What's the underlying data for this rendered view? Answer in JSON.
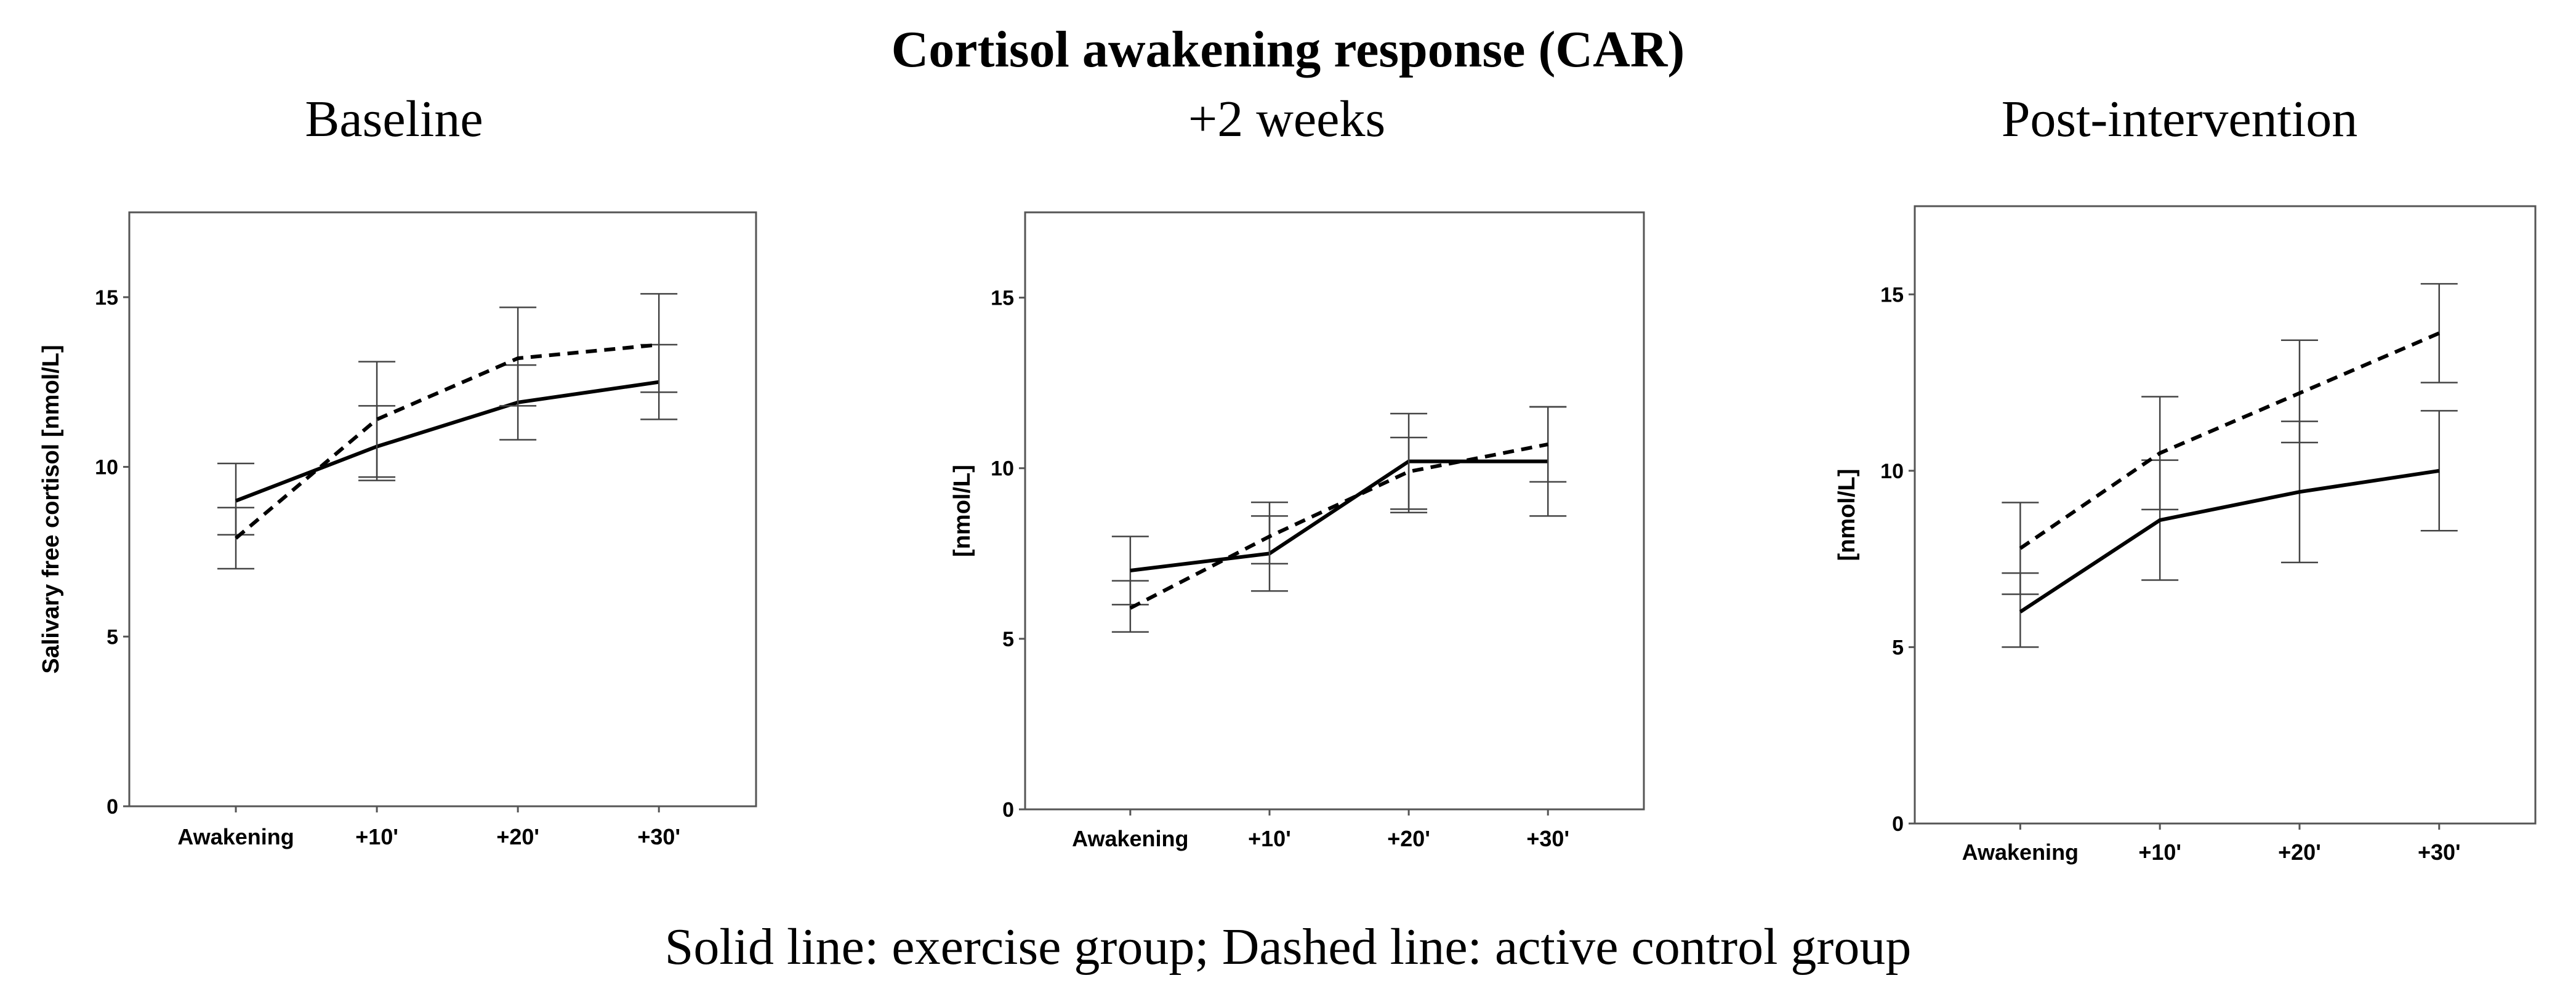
{
  "figure": {
    "title": "Cortisol awakening response (CAR)",
    "caption": "Solid line: exercise group; Dashed line: active control group"
  },
  "chart_data": [
    {
      "type": "line",
      "title": "Baseline",
      "ylabel": "Salivary free cortisol [nmol/L]",
      "xlabel": "",
      "categories": [
        "Awakening",
        "+10'",
        "+20'",
        "+30'"
      ],
      "ylim": [
        0,
        17.5
      ],
      "yticks": [
        "0",
        "5",
        "10",
        "15"
      ],
      "grid": false,
      "series": [
        {
          "style": "solid",
          "values": [
            9.0,
            10.6,
            11.9,
            12.5
          ],
          "err_low": [
            8.0,
            9.6,
            10.8,
            11.4
          ],
          "err_high": [
            10.1,
            11.8,
            13.0,
            13.6
          ]
        },
        {
          "style": "dashed",
          "values": [
            7.9,
            11.4,
            13.2,
            13.6
          ],
          "err_low": [
            7.0,
            9.7,
            11.8,
            12.2
          ],
          "err_high": [
            8.8,
            13.1,
            14.7,
            15.1
          ]
        }
      ]
    },
    {
      "type": "line",
      "title": "+2 weeks",
      "ylabel": "[nmol/L]",
      "xlabel": "",
      "categories": [
        "Awakening",
        "+10'",
        "+20'",
        "+30'"
      ],
      "ylim": [
        0,
        17.5
      ],
      "yticks": [
        "0",
        "5",
        "10",
        "15"
      ],
      "grid": false,
      "series": [
        {
          "style": "solid",
          "values": [
            7.0,
            7.5,
            10.2,
            10.2
          ],
          "err_low": [
            6.0,
            6.4,
            8.8,
            8.6
          ],
          "err_high": [
            8.0,
            8.6,
            11.6,
            11.8
          ]
        },
        {
          "style": "dashed",
          "values": [
            5.9,
            8.0,
            9.9,
            10.7
          ],
          "err_low": [
            5.2,
            7.2,
            8.7,
            9.6
          ],
          "err_high": [
            6.7,
            9.0,
            10.9,
            11.8
          ]
        }
      ]
    },
    {
      "type": "line",
      "title": "Post-intervention",
      "ylabel": "[nmol/L]",
      "xlabel": "",
      "categories": [
        "Awakening",
        "+10'",
        "+20'",
        "+30'"
      ],
      "ylim": [
        0,
        17.5
      ],
      "yticks": [
        "0",
        "5",
        "10",
        "15"
      ],
      "grid": false,
      "series": [
        {
          "style": "solid",
          "values": [
            6.0,
            8.6,
            9.4,
            10.0
          ],
          "err_low": [
            5.0,
            6.9,
            7.4,
            8.3
          ],
          "err_high": [
            7.1,
            10.3,
            11.4,
            11.7
          ]
        },
        {
          "style": "dashed",
          "values": [
            7.8,
            10.5,
            12.2,
            13.9
          ],
          "err_low": [
            6.5,
            8.9,
            10.8,
            12.5
          ],
          "err_high": [
            9.1,
            12.1,
            13.7,
            15.3
          ]
        }
      ]
    }
  ]
}
